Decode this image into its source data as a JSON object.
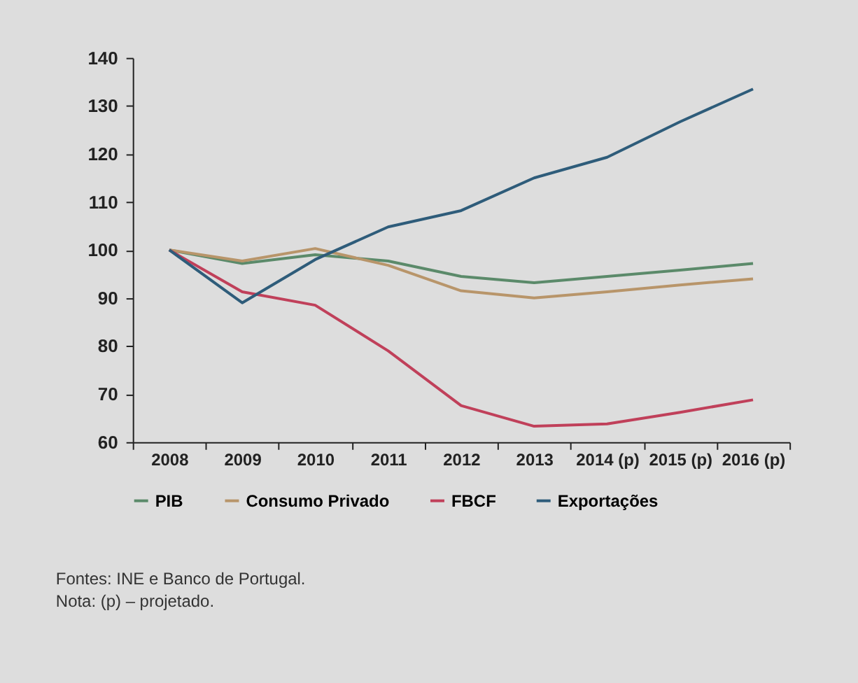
{
  "chart_data": {
    "type": "line",
    "categories": [
      "2008",
      "2009",
      "2010",
      "2011",
      "2012",
      "2013",
      "2014 (p)",
      "2015 (p)",
      "2016 (p)"
    ],
    "series": [
      {
        "name": "PIB",
        "color": "#5b8a6a",
        "values": [
          100,
          97.2,
          99,
          97.7,
          94.5,
          93.2,
          94.5,
          95.8,
          97.2
        ]
      },
      {
        "name": "Consumo Privado",
        "color": "#b8956a",
        "values": [
          100,
          97.7,
          100.3,
          96.8,
          91.5,
          90,
          91.3,
          92.7,
          94
        ]
      },
      {
        "name": "FBCF",
        "color": "#c0405a",
        "values": [
          100,
          91.3,
          88.5,
          79,
          67.6,
          63.3,
          63.8,
          66.2,
          68.8
        ]
      },
      {
        "name": "Exportações",
        "color": "#2e5c7a",
        "values": [
          100,
          89,
          98,
          104.8,
          108.2,
          115,
          119.3,
          126.7,
          133.5
        ]
      }
    ],
    "ylim": [
      60,
      140
    ],
    "yticks": [
      60,
      70,
      80,
      90,
      100,
      110,
      120,
      130,
      140
    ],
    "legend": "bottom",
    "marker": "none",
    "line_style": "solid",
    "annotations": [
      "Fontes: INE e Banco de Portugal.",
      "Nota: (p) – projetado."
    ]
  }
}
